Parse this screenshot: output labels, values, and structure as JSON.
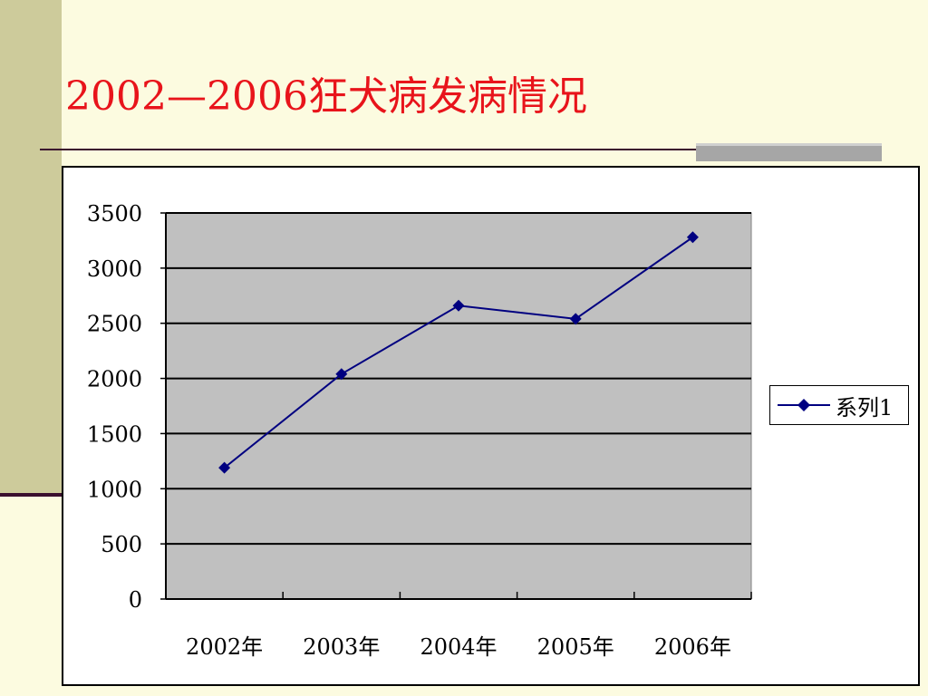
{
  "slide": {
    "title": "2002—2006狂犬病发病情况"
  },
  "colors": {
    "title": "#e8141b",
    "plot_area": "#c0c0c0",
    "series": "#000080",
    "background": "#fcfbe0"
  },
  "chart_data": {
    "type": "line",
    "title": "",
    "xlabel": "",
    "ylabel": "",
    "categories": [
      "2002年",
      "2003年",
      "2004年",
      "2005年",
      "2006年"
    ],
    "series": [
      {
        "name": "系列1",
        "marker": "diamond",
        "values": [
          1190,
          2040,
          2660,
          2540,
          3280
        ]
      }
    ],
    "ylim": [
      0,
      3500
    ],
    "yticks": [
      0,
      500,
      1000,
      1500,
      2000,
      2500,
      3000,
      3500
    ],
    "grid": true,
    "legend": "right"
  }
}
